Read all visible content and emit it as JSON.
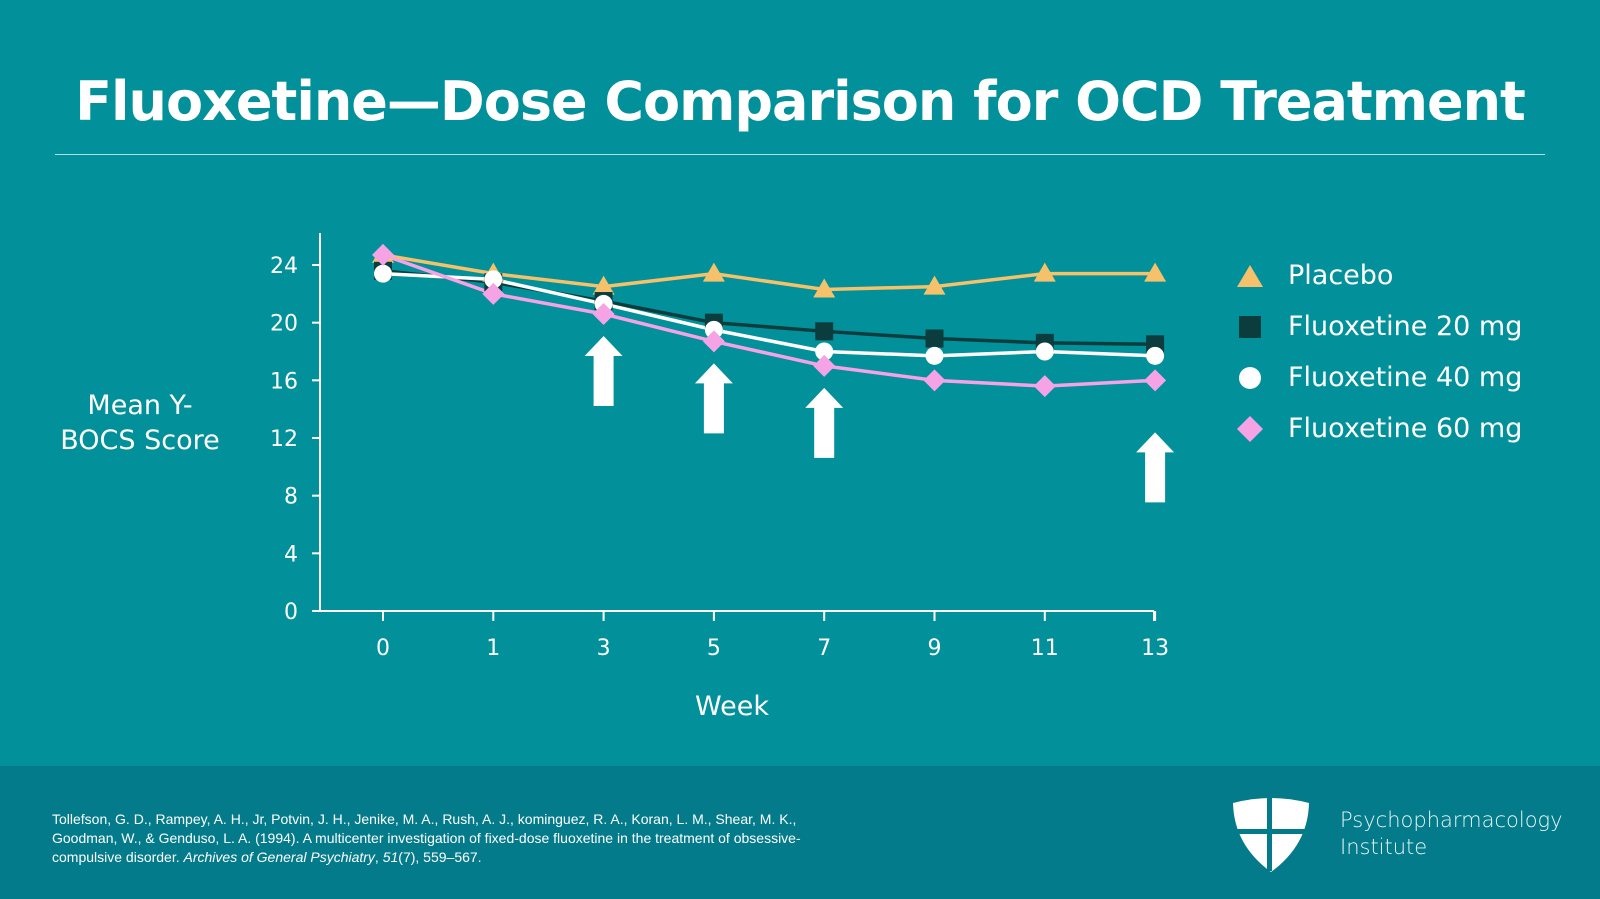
{
  "title": "Fluoxetine—Dose Comparison for OCD Treatment",
  "colors": {
    "background": "#02909a",
    "footer": "#037b8b",
    "placebo": "#f5c26b",
    "fluoxetine_20": "#0b3d3f",
    "fluoxetine_40": "#ffffff",
    "fluoxetine_60": "#f6a3e6",
    "axis": "#ffffff",
    "arrow": "#ffffff"
  },
  "chart_data": {
    "type": "line",
    "title": "Fluoxetine—Dose Comparison for OCD Treatment",
    "xlabel": "Week",
    "ylabel": "Mean Y-BOCS Score",
    "categories": [
      "0",
      "1",
      "3",
      "5",
      "7",
      "9",
      "11",
      "13"
    ],
    "ylim": [
      0,
      26
    ],
    "yticks": [
      0,
      4,
      8,
      12,
      16,
      20,
      24
    ],
    "grid": false,
    "legend_position": "right",
    "series": [
      {
        "name": "Placebo",
        "marker": "triangle",
        "values": [
          24.7,
          23.4,
          22.5,
          23.4,
          22.3,
          22.5,
          23.4,
          23.4
        ]
      },
      {
        "name": "Fluoxetine 20 mg",
        "marker": "square",
        "values": [
          23.6,
          22.8,
          21.5,
          20.0,
          19.4,
          18.9,
          18.6,
          18.5
        ]
      },
      {
        "name": "Fluoxetine 40 mg",
        "marker": "circle",
        "values": [
          23.4,
          23.0,
          21.3,
          19.5,
          18.0,
          17.7,
          18.0,
          17.7
        ]
      },
      {
        "name": "Fluoxetine 60 mg",
        "marker": "diamond",
        "values": [
          24.7,
          22.0,
          20.6,
          18.7,
          17.0,
          16.0,
          15.6,
          16.0
        ]
      }
    ],
    "annotations": [
      {
        "type": "up-arrow",
        "week": "3",
        "below_series": "Fluoxetine 60 mg"
      },
      {
        "type": "up-arrow",
        "week": "5",
        "below_series": "Fluoxetine 60 mg"
      },
      {
        "type": "up-arrow",
        "week": "7",
        "below_series": "Fluoxetine 60 mg"
      },
      {
        "type": "up-arrow",
        "week": "13",
        "below_series": "Fluoxetine 60 mg"
      }
    ]
  },
  "y_axis_label_lines": [
    "Mean Y-",
    "BOCS Score"
  ],
  "legend": [
    {
      "label": "Placebo",
      "icon": "triangle-icon"
    },
    {
      "label": "Fluoxetine 20 mg",
      "icon": "square-icon"
    },
    {
      "label": "Fluoxetine 40 mg",
      "icon": "circle-icon"
    },
    {
      "label": "Fluoxetine 60 mg",
      "icon": "diamond-icon"
    }
  ],
  "footer": {
    "citation_part1": "Tollefson, G. D., Rampey, A. H., Jr, Potvin, J. H., Jenike, M. A., Rush, A. J., kominguez, R. A., Koran, L. M., Shear, M. K., Goodman, W., & Genduso, L. A. (1994). A multicenter investigation of fixed-dose fluoxetine in the treatment of obsessive-compulsive disorder. ",
    "citation_journal": "Archives of General Psychiatry",
    "citation_sep": ", ",
    "citation_volume": "51",
    "citation_part2": "(7), 559–567.",
    "logo_line1": "Psychopharmacology",
    "logo_line2": "Institute"
  }
}
